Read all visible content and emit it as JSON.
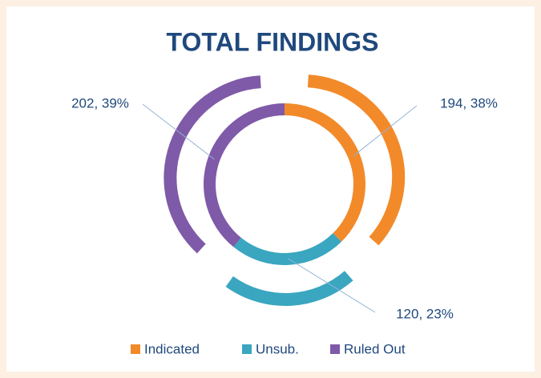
{
  "chart_data": {
    "type": "doughnut",
    "title": "TOTAL FINDINGS",
    "categories": [
      "Indicated",
      "Unsub.",
      "Ruled Out"
    ],
    "values": [
      194,
      120,
      202
    ],
    "value_labels": [
      "194, 38%",
      "120, 23%",
      "202, 39%"
    ],
    "colors": [
      "#f28a2a",
      "#3aa6c0",
      "#7f5aa8"
    ],
    "legend": "bottom"
  }
}
